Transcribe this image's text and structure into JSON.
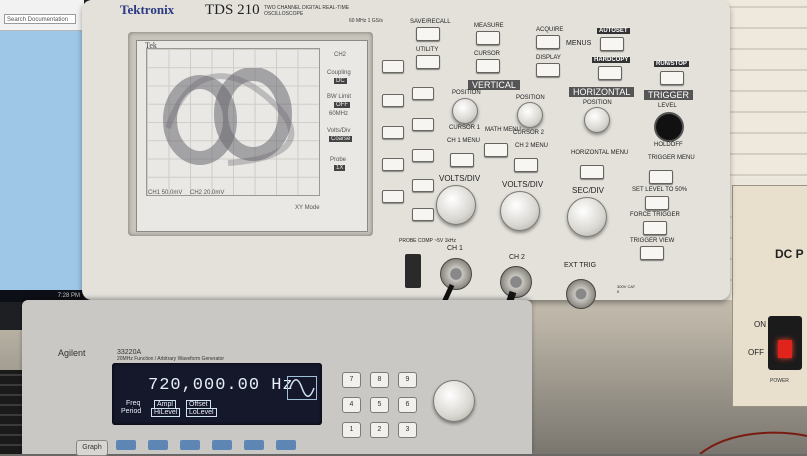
{
  "laptop": {
    "search_placeholder": "Search Documentation",
    "clock": "7:28 PM"
  },
  "oscilloscope": {
    "brand": "Tektronix",
    "model": "TDS 210",
    "subtitle": "TWO CHANNEL DIGITAL REAL-TIME OSCILLOSCOPE",
    "spec": "60 MHz 1 GS/s",
    "screen": {
      "tek": "Tek",
      "ch2_title": "CH2",
      "coupling_label": "Coupling",
      "coupling_value": "DC",
      "bw_limit_label": "BW Limit",
      "bw_limit_value": "OFF",
      "bw_limit_freq": "60MHz",
      "volts_div_label": "Volts/Div",
      "volts_div_value": "Coarse",
      "probe_label": "Probe",
      "probe_value": "1X",
      "ch1_meas": "CH1 50.0mV",
      "ch2_meas": "CH2 20.0mV",
      "mode": "XY Mode"
    },
    "buttons": {
      "save_recall": "SAVE/RECALL",
      "measure": "MEASURE",
      "acquire": "ACQUIRE",
      "autoset": "AUTOSET",
      "utility": "UTILITY",
      "cursor": "CURSOR",
      "display": "DISPLAY",
      "menus": "MENUS",
      "hardcopy": "HARDCOPY",
      "run_stop": "RUN/STOP",
      "math_menu": "MATH MENU",
      "ch1_menu": "CH 1 MENU",
      "ch2_menu": "CH 2 MENU",
      "horizontal_menu": "HORIZONTAL MENU",
      "trigger_menu": "TRIGGER MENU",
      "set_level": "SET LEVEL TO 50%",
      "force_trigger": "FORCE TRIGGER",
      "trigger_view": "TRIGGER VIEW"
    },
    "sections": {
      "vertical": "VERTICAL",
      "horizontal": "HORIZONTAL",
      "trigger": "TRIGGER"
    },
    "knobs": {
      "position": "POSITION",
      "cursor1": "CURSOR 1",
      "cursor2": "CURSOR 2",
      "volts_div": "VOLTS/DIV",
      "sec_div": "SEC/DIV",
      "level": "LEVEL",
      "holdoff": "HOLDOFF"
    },
    "ports": {
      "probe_comp": "PROBE COMP ~5V 1kHz",
      "ch1": "CH 1",
      "ch2": "CH 2",
      "ext_trig": "EXT TRIG",
      "cat": "300V CAT II"
    }
  },
  "function_generator": {
    "brand": "Agilent",
    "model": "33220A",
    "subtitle": "20MHz Function / Arbitrary Waveform Generator",
    "frequency": "720,000.00 Hz",
    "softkeys_top": [
      "Freq",
      "Ampl",
      "Offset"
    ],
    "softkeys_bottom": [
      "Period",
      "HiLevel",
      "LoLevel"
    ],
    "graph_label": "Graph",
    "keypad": [
      "7",
      "8",
      "9",
      "4",
      "5",
      "6",
      "1",
      "2",
      "3"
    ]
  },
  "power_supply": {
    "label": "DC P",
    "on": "ON",
    "off": "OFF",
    "power": "POWER"
  }
}
